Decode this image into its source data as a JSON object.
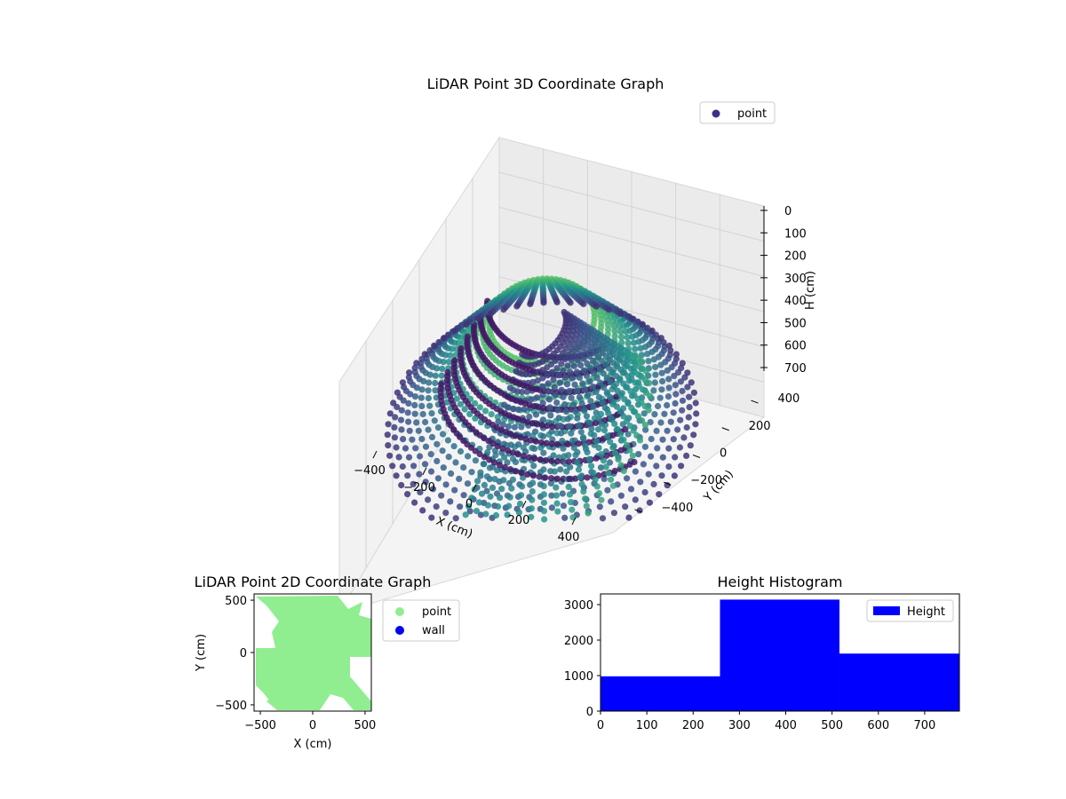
{
  "chart_data": [
    {
      "type": "scatter3d",
      "title": "LiDAR Point 3D Coordinate Graph",
      "xlabel": "X (cm)",
      "ylabel": "Y (cm)",
      "zlabel": "H (cm)",
      "x_ticks": [
        -400,
        -200,
        0,
        200,
        400
      ],
      "y_ticks": [
        -400,
        -200,
        0,
        200,
        400
      ],
      "z_ticks": [
        0,
        100,
        200,
        300,
        400,
        500,
        600,
        700
      ],
      "z_tick_labels": [
        "0",
        "100",
        "200",
        "300",
        "400",
        "500",
        "600",
        "700"
      ],
      "xlim": [
        -550,
        550
      ],
      "ylim": [
        -550,
        550
      ],
      "zlim": [
        0,
        750
      ],
      "z_inverted": true,
      "legend": {
        "entries": [
          "point"
        ],
        "position": "upper-right"
      },
      "grid": true,
      "colors": {
        "low": "#440154",
        "mid": "#21908d",
        "marker_legend": "#3b3188"
      }
    },
    {
      "type": "scatter",
      "title": "LiDAR Point 2D Coordinate Graph",
      "xlabel": "X (cm)",
      "ylabel": "Y (cm)",
      "x_ticks": [
        -500,
        0,
        500
      ],
      "y_ticks": [
        -500,
        0,
        500
      ],
      "xlim": [
        -560,
        560
      ],
      "ylim": [
        -560,
        560
      ],
      "series": [
        {
          "name": "point",
          "color": "#90ee90"
        },
        {
          "name": "wall",
          "color": "#0000ff"
        }
      ],
      "legend": {
        "position": "outside-right"
      },
      "grid": false
    },
    {
      "type": "bar",
      "title": "Height Histogram",
      "bins": [
        [
          0,
          258
        ],
        [
          258,
          516
        ],
        [
          516,
          775
        ]
      ],
      "values": [
        980,
        3140,
        1620
      ],
      "x_ticks": [
        0,
        100,
        200,
        300,
        400,
        500,
        600,
        700
      ],
      "y_ticks": [
        0,
        1000,
        2000,
        3000
      ],
      "xlim": [
        0,
        775
      ],
      "ylim": [
        0,
        3300
      ],
      "series": [
        {
          "name": "Height",
          "color": "#0000ff"
        }
      ],
      "legend": {
        "position": "upper-right"
      },
      "grid": false
    }
  ]
}
